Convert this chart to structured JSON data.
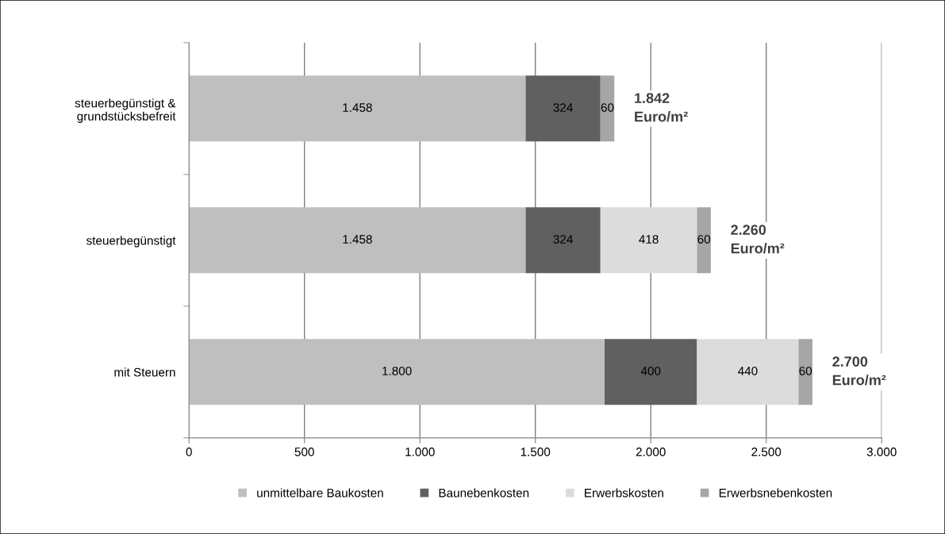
{
  "chart_data": {
    "type": "bar",
    "orientation": "horizontal",
    "stacked": true,
    "categories": [
      "steuerbegünstigt &\ngrundstücksbefreit",
      "steuerbegünstigt",
      "mit Steuern"
    ],
    "series": [
      {
        "name": "unmittelbare Baukosten",
        "color": "#bfbfbf",
        "values": [
          1458,
          1458,
          1800
        ],
        "value_labels": [
          "1.458",
          "1.458",
          "1.800"
        ]
      },
      {
        "name": "Baunebenkosten",
        "color": "#606060",
        "values": [
          324,
          324,
          400
        ],
        "value_labels": [
          "324",
          "324",
          "400"
        ]
      },
      {
        "name": "Erwerbskosten",
        "color": "#dcdcdc",
        "values": [
          null,
          418,
          440
        ],
        "value_labels": [
          null,
          "418",
          "440"
        ]
      },
      {
        "name": "Erwerbsnebenkosten",
        "color": "#a6a6a6",
        "values": [
          60,
          60,
          60
        ],
        "value_labels": [
          "60",
          "60",
          "60"
        ]
      }
    ],
    "totals": [
      "1.842\nEuro/m²",
      "2.260\nEuro/m²",
      "2.700\nEuro/m²"
    ],
    "xlim": [
      0,
      3000
    ],
    "xticks": [
      0,
      500,
      {
        "value": 1000,
        "label": "1.000"
      },
      {
        "value": 1500,
        "label": "1.500"
      },
      {
        "value": 2000,
        "label": "2.000"
      },
      {
        "value": 2500,
        "label": "2.500"
      },
      {
        "value": 3000,
        "label": "3.000"
      }
    ],
    "grid": "x",
    "legend": "bottom"
  }
}
